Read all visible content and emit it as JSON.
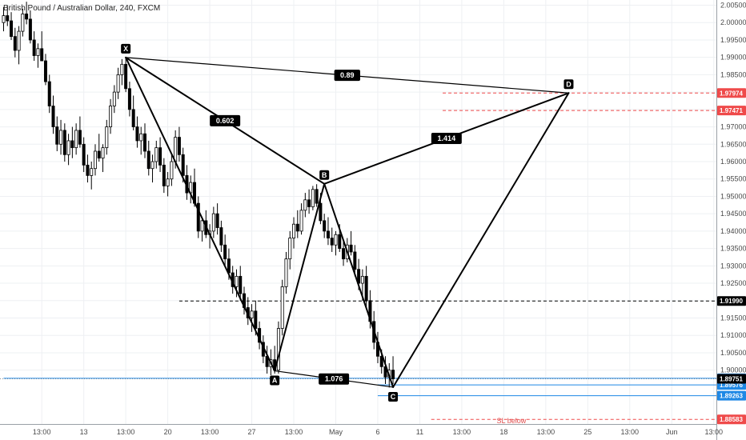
{
  "chart_data": {
    "type": "candlestick",
    "title": "British Pound / Australian Dollar, 240, FXCM",
    "ylim": [
      1.8845,
      2.0065
    ],
    "y_ticks": [
      "2.00500",
      "2.00000",
      "1.99500",
      "1.99000",
      "1.98500",
      "1.98000",
      "1.97500",
      "1.97000",
      "1.96500",
      "1.96000",
      "1.95500",
      "1.95000",
      "1.94500",
      "1.94000",
      "1.93500",
      "1.93000",
      "1.92500",
      "1.92000",
      "1.91500",
      "1.91000",
      "1.90500",
      "1.90000"
    ],
    "x_ticks": [
      {
        "label": "13:00",
        "i": 10
      },
      {
        "label": "13",
        "i": 21
      },
      {
        "label": "13:00",
        "i": 32
      },
      {
        "label": "20",
        "i": 43
      },
      {
        "label": "13:00",
        "i": 54
      },
      {
        "label": "27",
        "i": 65
      },
      {
        "label": "13:00",
        "i": 76
      },
      {
        "label": "May",
        "i": 87
      },
      {
        "label": "6",
        "i": 98
      },
      {
        "label": "11",
        "i": 109
      },
      {
        "label": "13:00",
        "i": 120
      },
      {
        "label": "18",
        "i": 131
      },
      {
        "label": "13:00",
        "i": 142
      },
      {
        "label": "25",
        "i": 153
      },
      {
        "label": "13:00",
        "i": 164
      },
      {
        "label": "Jun",
        "i": 175
      },
      {
        "label": "13:00",
        "i": 186
      }
    ],
    "candles": [
      [
        2.0,
        2.0045,
        1.9975,
        2.002
      ],
      [
        2.002,
        2.005,
        1.999,
        2.0005
      ],
      [
        2.0005,
        2.003,
        1.995,
        1.996
      ],
      [
        1.996,
        1.9985,
        1.99,
        1.992
      ],
      [
        1.992,
        1.999,
        1.988,
        1.9975
      ],
      [
        1.9975,
        2.004,
        1.996,
        2.0025
      ],
      [
        2.0025,
        2.006,
        1.9995,
        2.001
      ],
      [
        2.001,
        2.0035,
        1.994,
        1.995
      ],
      [
        1.995,
        1.9975,
        1.989,
        1.9905
      ],
      [
        1.9905,
        1.994,
        1.987,
        1.9925
      ],
      [
        1.9925,
        1.9975,
        1.99,
        1.989
      ],
      [
        1.989,
        1.991,
        1.982,
        1.983
      ],
      [
        1.983,
        1.985,
        1.974,
        1.976
      ],
      [
        1.976,
        1.979,
        1.968,
        1.97
      ],
      [
        1.97,
        1.973,
        1.963,
        1.965
      ],
      [
        1.965,
        1.972,
        1.962,
        1.969
      ],
      [
        1.969,
        1.971,
        1.96,
        1.962
      ],
      [
        1.962,
        1.968,
        1.959,
        1.966
      ],
      [
        1.966,
        1.97,
        1.961,
        1.964
      ],
      [
        1.964,
        1.971,
        1.962,
        1.969
      ],
      [
        1.969,
        1.973,
        1.964,
        1.965
      ],
      [
        1.965,
        1.967,
        1.957,
        1.959
      ],
      [
        1.959,
        1.962,
        1.954,
        1.956
      ],
      [
        1.956,
        1.96,
        1.952,
        1.958
      ],
      [
        1.958,
        1.965,
        1.956,
        1.963
      ],
      [
        1.963,
        1.968,
        1.96,
        1.961
      ],
      [
        1.961,
        1.965,
        1.957,
        1.964
      ],
      [
        1.964,
        1.972,
        1.962,
        1.97
      ],
      [
        1.97,
        1.978,
        1.968,
        1.976
      ],
      [
        1.976,
        1.982,
        1.974,
        1.98
      ],
      [
        1.98,
        1.987,
        1.978,
        1.985
      ],
      [
        1.985,
        1.9895,
        1.982,
        1.988
      ],
      [
        1.988,
        1.99,
        1.98,
        1.981
      ],
      [
        1.981,
        1.983,
        1.973,
        1.975
      ],
      [
        1.975,
        1.979,
        1.969,
        1.97
      ],
      [
        1.97,
        1.973,
        1.964,
        1.966
      ],
      [
        1.966,
        1.97,
        1.962,
        1.968
      ],
      [
        1.968,
        1.971,
        1.961,
        1.963
      ],
      [
        1.963,
        1.966,
        1.956,
        1.958
      ],
      [
        1.958,
        1.962,
        1.954,
        1.96
      ],
      [
        1.96,
        1.966,
        1.958,
        1.964
      ],
      [
        1.964,
        1.967,
        1.957,
        1.959
      ],
      [
        1.959,
        1.961,
        1.951,
        1.953
      ],
      [
        1.953,
        1.957,
        1.95,
        1.955
      ],
      [
        1.955,
        1.962,
        1.953,
        1.96
      ],
      [
        1.96,
        1.969,
        1.958,
        1.967
      ],
      [
        1.967,
        1.97,
        1.96,
        1.962
      ],
      [
        1.962,
        1.964,
        1.954,
        1.956
      ],
      [
        1.956,
        1.959,
        1.949,
        1.951
      ],
      [
        1.951,
        1.956,
        1.948,
        1.954
      ],
      [
        1.954,
        1.958,
        1.947,
        1.948
      ],
      [
        1.948,
        1.95,
        1.938,
        1.94
      ],
      [
        1.94,
        1.944,
        1.937,
        1.943
      ],
      [
        1.943,
        1.946,
        1.938,
        1.939
      ],
      [
        1.939,
        1.942,
        1.935,
        1.94
      ],
      [
        1.94,
        1.947,
        1.938,
        1.945
      ],
      [
        1.945,
        1.948,
        1.939,
        1.941
      ],
      [
        1.941,
        1.943,
        1.934,
        1.936
      ],
      [
        1.936,
        1.939,
        1.93,
        1.932
      ],
      [
        1.932,
        1.935,
        1.926,
        1.928
      ],
      [
        1.928,
        1.93,
        1.922,
        1.924
      ],
      [
        1.924,
        1.929,
        1.921,
        1.927
      ],
      [
        1.927,
        1.93,
        1.92,
        1.922
      ],
      [
        1.922,
        1.924,
        1.916,
        1.918
      ],
      [
        1.918,
        1.921,
        1.913,
        1.915
      ],
      [
        1.915,
        1.919,
        1.911,
        1.917
      ],
      [
        1.917,
        1.92,
        1.91,
        1.912
      ],
      [
        1.912,
        1.914,
        1.906,
        1.908
      ],
      [
        1.908,
        1.91,
        1.902,
        1.904
      ],
      [
        1.904,
        1.907,
        1.899,
        1.901
      ],
      [
        1.901,
        1.906,
        1.8985,
        1.903
      ],
      [
        1.903,
        1.907,
        1.899,
        1.9
      ],
      [
        1.9,
        1.914,
        1.899,
        1.912
      ],
      [
        1.912,
        1.926,
        1.91,
        1.924
      ],
      [
        1.924,
        1.934,
        1.922,
        1.932
      ],
      [
        1.932,
        1.94,
        1.929,
        1.938
      ],
      [
        1.938,
        1.944,
        1.935,
        1.942
      ],
      [
        1.942,
        1.946,
        1.938,
        1.94
      ],
      [
        1.94,
        1.948,
        1.939,
        1.946
      ],
      [
        1.946,
        1.951,
        1.944,
        1.949
      ],
      [
        1.949,
        1.952,
        1.945,
        1.947
      ],
      [
        1.947,
        1.953,
        1.946,
        1.952
      ],
      [
        1.952,
        1.9535,
        1.947,
        1.948
      ],
      [
        1.948,
        1.951,
        1.942,
        1.943
      ],
      [
        1.943,
        1.945,
        1.938,
        1.94
      ],
      [
        1.94,
        1.944,
        1.936,
        1.938
      ],
      [
        1.938,
        1.941,
        1.934,
        1.936
      ],
      [
        1.936,
        1.94,
        1.933,
        1.939
      ],
      [
        1.939,
        1.942,
        1.934,
        1.935
      ],
      [
        1.935,
        1.937,
        1.93,
        1.932
      ],
      [
        1.932,
        1.938,
        1.931,
        1.936
      ],
      [
        1.936,
        1.94,
        1.933,
        1.934
      ],
      [
        1.934,
        1.936,
        1.927,
        1.929
      ],
      [
        1.929,
        1.932,
        1.923,
        1.925
      ],
      [
        1.925,
        1.929,
        1.92,
        1.927
      ],
      [
        1.927,
        1.93,
        1.918,
        1.92
      ],
      [
        1.92,
        1.923,
        1.912,
        1.914
      ],
      [
        1.914,
        1.917,
        1.906,
        1.908
      ],
      [
        1.908,
        1.911,
        1.902,
        1.904
      ],
      [
        1.904,
        1.906,
        1.899,
        1.901
      ],
      [
        1.901,
        1.904,
        1.896,
        1.898
      ],
      [
        1.898,
        1.902,
        1.895,
        1.9
      ],
      [
        1.9,
        1.904,
        1.896,
        1.8975
      ]
    ],
    "pattern_points": [
      {
        "label": "X",
        "i": 32,
        "price": 1.98995
      },
      {
        "label": "A",
        "i": 71,
        "price": 1.8998
      },
      {
        "label": "B",
        "i": 84,
        "price": 1.9536
      },
      {
        "label": "C",
        "i": 102,
        "price": 1.8951
      },
      {
        "label": "D",
        "i": 148,
        "price": 1.97974
      }
    ],
    "ratio_labels": [
      {
        "text": "0.602",
        "from": "X",
        "to": "B"
      },
      {
        "text": "0.89",
        "from": "X",
        "to": "D"
      },
      {
        "text": "1.414",
        "from": "B",
        "to": "D"
      },
      {
        "text": "1.076",
        "from": "A",
        "to": "C"
      }
    ],
    "horizontal_levels": [
      {
        "price": 1.97974,
        "label": "1.97974",
        "color": "#ef4a4a",
        "style": "dashed",
        "start_i": 115
      },
      {
        "price": 1.97471,
        "label": "1.97471",
        "color": "#ef4a4a",
        "style": "dashed",
        "start_i": 115
      },
      {
        "price": 1.9199,
        "label": "1.91990",
        "color": "#000000",
        "style": "dashed",
        "start_i": 46
      },
      {
        "price": 1.89765,
        "label": "1.89765",
        "color": "#1e88e5",
        "style": "solid",
        "start_i": 0
      },
      {
        "price": 1.89576,
        "label": "1.89576",
        "color": "#1e88e5",
        "style": "solid",
        "start_i": 98
      },
      {
        "price": 1.89263,
        "label": "1.89263",
        "color": "#1e88e5",
        "style": "solid",
        "start_i": 98
      },
      {
        "price": 1.88583,
        "label": "1.88583",
        "color": "#ef4a4a",
        "style": "dashed",
        "start_i": 112
      }
    ],
    "current_price": {
      "price": 1.89751,
      "label": "1.89751"
    },
    "sl_note": "SL below",
    "colors": {
      "candle": "#000000",
      "pattern": "#000000",
      "grid": "#eef0f3",
      "axis": "#4a4a4a"
    }
  }
}
